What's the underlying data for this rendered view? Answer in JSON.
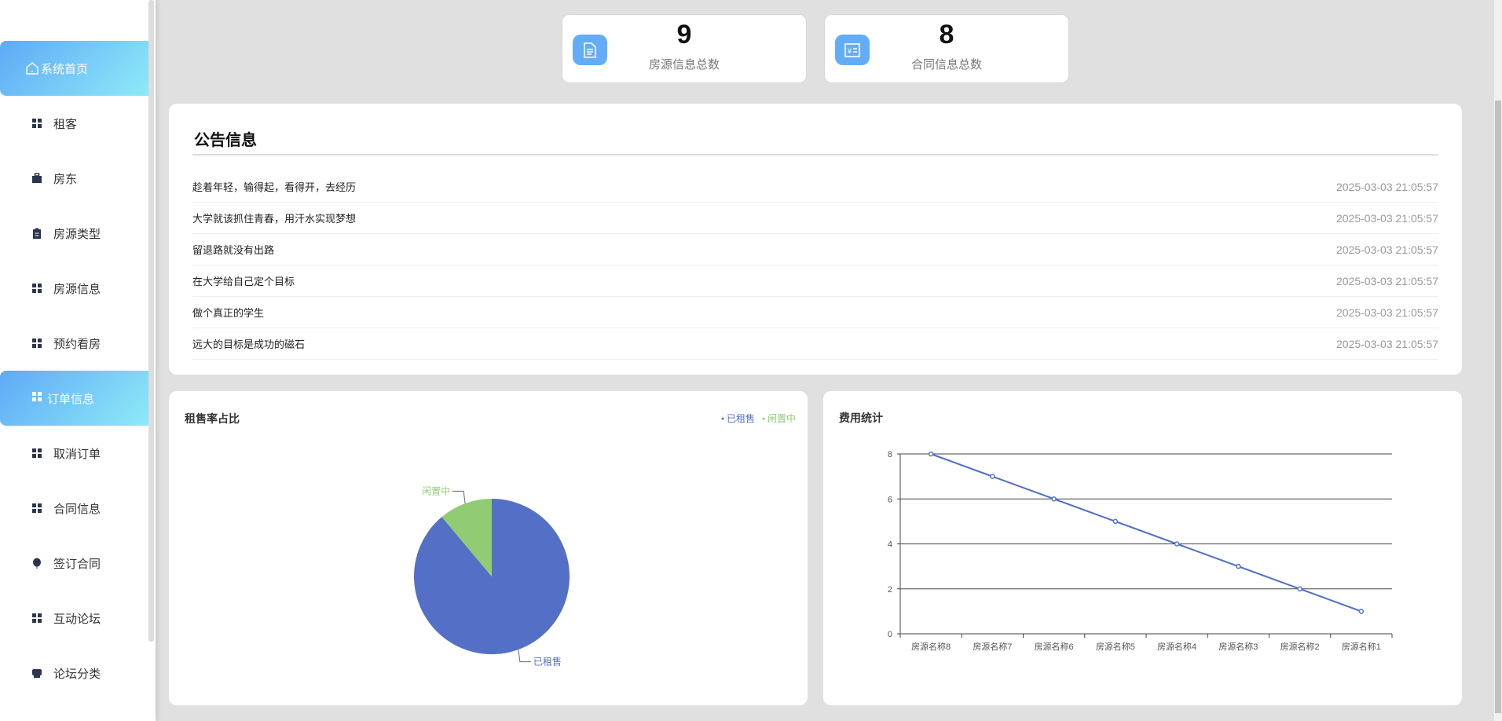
{
  "sidebar": {
    "items": [
      {
        "label": "系统首页",
        "icon": "home-icon",
        "active": true
      },
      {
        "label": "租客",
        "icon": "grid-icon"
      },
      {
        "label": "房东",
        "icon": "briefcase-icon"
      },
      {
        "label": "房源类型",
        "icon": "clipboard-icon"
      },
      {
        "label": "房源信息",
        "icon": "grid-icon"
      },
      {
        "label": "预约看房",
        "icon": "grid-icon"
      },
      {
        "label": "订单信息",
        "icon": "grid-icon",
        "hover": true
      },
      {
        "label": "取消订单",
        "icon": "grid-icon"
      },
      {
        "label": "合同信息",
        "icon": "grid-icon"
      },
      {
        "label": "签订合同",
        "icon": "balloon-icon"
      },
      {
        "label": "互动论坛",
        "icon": "grid-icon"
      },
      {
        "label": "论坛分类",
        "icon": "inbox-icon"
      }
    ]
  },
  "stats": [
    {
      "value": "9",
      "label": "房源信息总数",
      "icon": "document-icon"
    },
    {
      "value": "8",
      "label": "合同信息总数",
      "icon": "invoice-icon"
    }
  ],
  "announcements": {
    "title": "公告信息",
    "items": [
      {
        "text": "趁着年轻，输得起，看得开，去经历",
        "date": "2025-03-03 21:05:57"
      },
      {
        "text": "大学就该抓住青春，用汗水实现梦想",
        "date": "2025-03-03 21:05:57"
      },
      {
        "text": "留退路就没有出路",
        "date": "2025-03-03 21:05:57"
      },
      {
        "text": "在大学给自己定个目标",
        "date": "2025-03-03 21:05:57"
      },
      {
        "text": "做个真正的学生",
        "date": "2025-03-03 21:05:57"
      },
      {
        "text": "远大的目标是成功的磁石",
        "date": "2025-03-03 21:05:57"
      }
    ]
  },
  "chart_data": [
    {
      "type": "pie",
      "title": "租售率占比",
      "legend_placement": "top-right",
      "slices": [
        {
          "name": "已租售",
          "value": 8,
          "color": "#5470c6"
        },
        {
          "name": "闲置中",
          "value": 1,
          "color": "#91cc75"
        }
      ]
    },
    {
      "type": "line",
      "title": "费用统计",
      "categories": [
        "房源名称8",
        "房源名称7",
        "房源名称6",
        "房源名称5",
        "房源名称4",
        "房源名称3",
        "房源名称2",
        "房源名称1"
      ],
      "values": [
        8,
        7,
        6,
        5,
        4,
        3,
        2,
        1
      ],
      "ylim": [
        0,
        8
      ],
      "yticks": [
        0,
        2,
        4,
        6,
        8
      ],
      "grid": true,
      "color": "#5470c6"
    }
  ]
}
